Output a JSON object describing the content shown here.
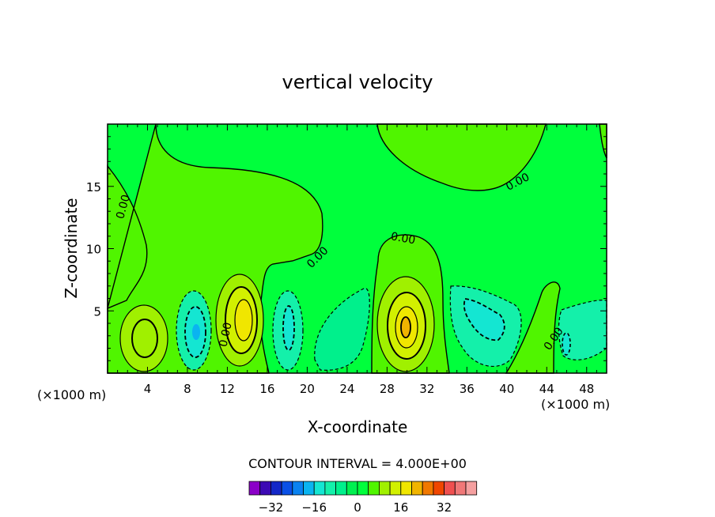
{
  "chart_data": {
    "type": "contour",
    "title": "vertical velocity",
    "xlabel": "X-coordinate",
    "ylabel": "Z-coordinate",
    "x_unit": "(×1000 m)",
    "xlim": [
      0,
      50
    ],
    "ylim": [
      0,
      20
    ],
    "x_ticks": [
      4,
      8,
      12,
      16,
      20,
      24,
      28,
      32,
      36,
      40,
      44,
      48
    ],
    "y_ticks": [
      5,
      10,
      15
    ],
    "contour_interval_text": "CONTOUR INTERVAL = 4.000E+00",
    "contour_interval": 4,
    "contour_labels": [
      "0.00",
      "0.00",
      "0.00",
      "0.00",
      "0.00",
      "0.00",
      "0.00"
    ],
    "colorbar": {
      "levels": [
        -36,
        -32,
        -28,
        -24,
        -20,
        -16,
        -12,
        -8,
        -4,
        0,
        4,
        8,
        12,
        16,
        20,
        24,
        28,
        32,
        36
      ],
      "tick_labels": [
        "−32",
        "−16",
        "0",
        "16",
        "32"
      ],
      "tick_values": [
        -32,
        -16,
        0,
        16,
        32
      ],
      "colors": [
        "#8b00c8",
        "#3c0ab4",
        "#1428c8",
        "#0a50e6",
        "#0a82f0",
        "#0ab4f0",
        "#14e6d2",
        "#14f0aa",
        "#00f08c",
        "#00f050",
        "#00ff3c",
        "#50f500",
        "#a0f000",
        "#d2f000",
        "#f0e600",
        "#f0b400",
        "#f07800",
        "#f04600",
        "#f05050",
        "#f07878",
        "#f5a0a0"
      ]
    },
    "background_color": "#00ff3c",
    "cells": [
      {
        "x": 3.7,
        "z": 3.0,
        "peak": 10,
        "sign": "up"
      },
      {
        "x": 8.6,
        "z": 3.5,
        "peak": -13,
        "sign": "down"
      },
      {
        "x": 13.5,
        "z": 4.4,
        "peak": 18,
        "sign": "up"
      },
      {
        "x": 18.2,
        "z": 4.0,
        "peak": -10,
        "sign": "down"
      },
      {
        "x": 23.0,
        "z": 3.6,
        "peak": -6,
        "sign": "down"
      },
      {
        "x": 29.6,
        "z": 3.8,
        "peak": 22,
        "sign": "up"
      },
      {
        "x": 37.5,
        "z": 3.8,
        "peak": -10,
        "sign": "down"
      },
      {
        "x": 46.5,
        "z": 3.2,
        "peak": -6,
        "sign": "down"
      }
    ]
  }
}
